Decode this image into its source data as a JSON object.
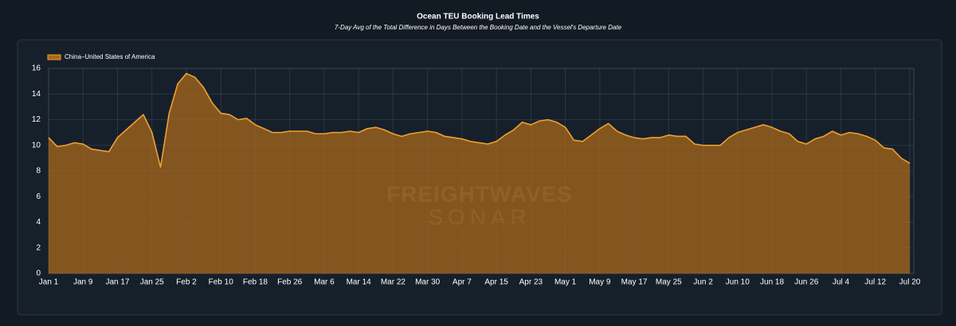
{
  "chart_data": {
    "type": "area",
    "title": "Ocean TEU Booking Lead Times",
    "subtitle": "7-Day  Avg of the Total Difference in Days Between the Booking Date and the Vessel's Departure Date",
    "watermark": [
      "FREIGHTWAVES",
      "SONAR"
    ],
    "categories": [
      "Jan 1",
      null,
      null,
      null,
      "Jan 9",
      null,
      null,
      null,
      "Jan 17",
      null,
      null,
      null,
      "Jan 25",
      null,
      null,
      null,
      "Feb 2",
      null,
      null,
      null,
      "Feb 10",
      null,
      null,
      null,
      "Feb 18",
      null,
      null,
      null,
      "Feb 26",
      null,
      null,
      null,
      "Mar 6",
      null,
      null,
      null,
      "Mar 14",
      null,
      null,
      null,
      "Mar 22",
      null,
      null,
      null,
      "Mar 30",
      null,
      null,
      null,
      "Apr 7",
      null,
      null,
      null,
      "Apr 15",
      null,
      null,
      null,
      "Apr 23",
      null,
      null,
      null,
      "May 1",
      null,
      null,
      null,
      "May 9",
      null,
      null,
      null,
      "May 17",
      null,
      null,
      null,
      "May 25",
      null,
      null,
      null,
      "Jun 2",
      null,
      null,
      null,
      "Jun 10",
      null,
      null,
      null,
      "Jun 18",
      null,
      null,
      null,
      "Jun 26",
      null,
      null,
      null,
      "Jul 4",
      null,
      null,
      null,
      "Jul 12",
      null,
      null,
      null,
      "Jul 20"
    ],
    "series": [
      {
        "name": "China–United States of America",
        "color": "#f0a030",
        "fill": "#a8681c",
        "values": [
          10.6,
          9.9,
          10.0,
          10.2,
          10.1,
          9.7,
          9.6,
          9.5,
          10.6,
          11.2,
          11.8,
          12.4,
          11.0,
          8.3,
          12.5,
          14.8,
          15.6,
          15.3,
          14.5,
          13.3,
          12.5,
          12.4,
          12.0,
          12.1,
          11.6,
          11.3,
          11.0,
          11.0,
          11.1,
          11.1,
          11.1,
          10.9,
          10.9,
          11.0,
          11.0,
          11.1,
          11.0,
          11.3,
          11.4,
          11.2,
          10.9,
          10.7,
          10.9,
          11.0,
          11.1,
          11.0,
          10.7,
          10.6,
          10.5,
          10.3,
          10.2,
          10.1,
          10.3,
          10.8,
          11.2,
          11.8,
          11.6,
          11.9,
          12.0,
          11.8,
          11.4,
          10.4,
          10.3,
          10.8,
          11.3,
          11.7,
          11.1,
          10.8,
          10.6,
          10.5,
          10.6,
          10.6,
          10.8,
          10.7,
          10.7,
          10.1,
          10.0,
          10.0,
          10.0,
          10.6,
          11.0,
          11.2,
          11.4,
          11.6,
          11.4,
          11.1,
          10.9,
          10.3,
          10.1,
          10.5,
          10.7,
          11.1,
          10.8,
          11.0,
          10.9,
          10.7,
          10.4,
          9.8,
          9.7,
          9.0,
          8.6
        ]
      }
    ],
    "ylim": [
      0,
      16
    ],
    "yticks": [
      0,
      2,
      4,
      6,
      8,
      10,
      12,
      14,
      16
    ],
    "grid": true,
    "legend": "top-left"
  }
}
